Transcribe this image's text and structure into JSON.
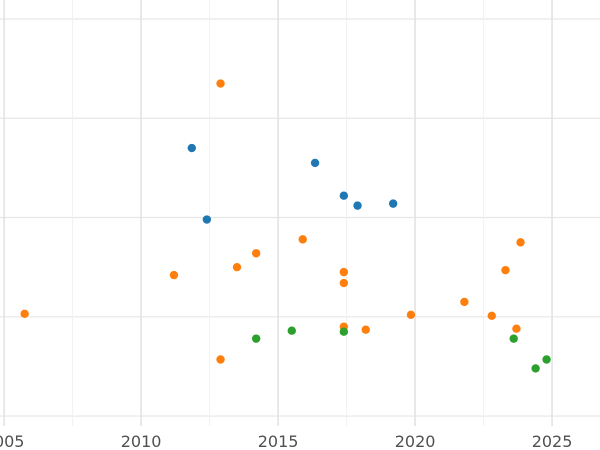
{
  "chart_data": {
    "type": "scatter",
    "title": "",
    "xlabel": "",
    "ylabel": "",
    "x_ticks": [
      "2005",
      "2010",
      "2015",
      "2020",
      "2025"
    ],
    "xlim": [
      2004.85,
      2026.75
    ],
    "ylim": [
      -4.1,
      0.01
    ],
    "grid": true,
    "legend": "none",
    "series": [
      {
        "color": "#1f77b4",
        "points": [
          [
            2011.85,
            -1.3
          ],
          [
            2012.4,
            -2.02
          ],
          [
            2016.35,
            -1.45
          ],
          [
            2017.4,
            -1.78
          ],
          [
            2017.9,
            -1.88
          ],
          [
            2019.2,
            -1.86
          ]
        ]
      },
      {
        "color": "#ff7f0e",
        "points": [
          [
            2005.75,
            -2.97
          ],
          [
            2011.2,
            -2.58
          ],
          [
            2012.9,
            -0.65
          ],
          [
            2012.9,
            -3.43
          ],
          [
            2013.5,
            -2.5
          ],
          [
            2014.2,
            -2.36
          ],
          [
            2015.9,
            -2.22
          ],
          [
            2017.4,
            -2.55
          ],
          [
            2017.4,
            -2.66
          ],
          [
            2017.4,
            -3.1
          ],
          [
            2018.2,
            -3.13
          ],
          [
            2019.85,
            -2.98
          ],
          [
            2021.8,
            -2.85
          ],
          [
            2022.8,
            -2.99
          ],
          [
            2023.3,
            -2.53
          ],
          [
            2023.7,
            -3.12
          ],
          [
            2023.85,
            -2.25
          ]
        ]
      },
      {
        "color": "#2ca02c",
        "points": [
          [
            2014.2,
            -3.22
          ],
          [
            2015.5,
            -3.14
          ],
          [
            2017.4,
            -3.15
          ],
          [
            2023.6,
            -3.22
          ],
          [
            2024.4,
            -3.52
          ],
          [
            2024.8,
            -3.43
          ]
        ]
      }
    ]
  }
}
